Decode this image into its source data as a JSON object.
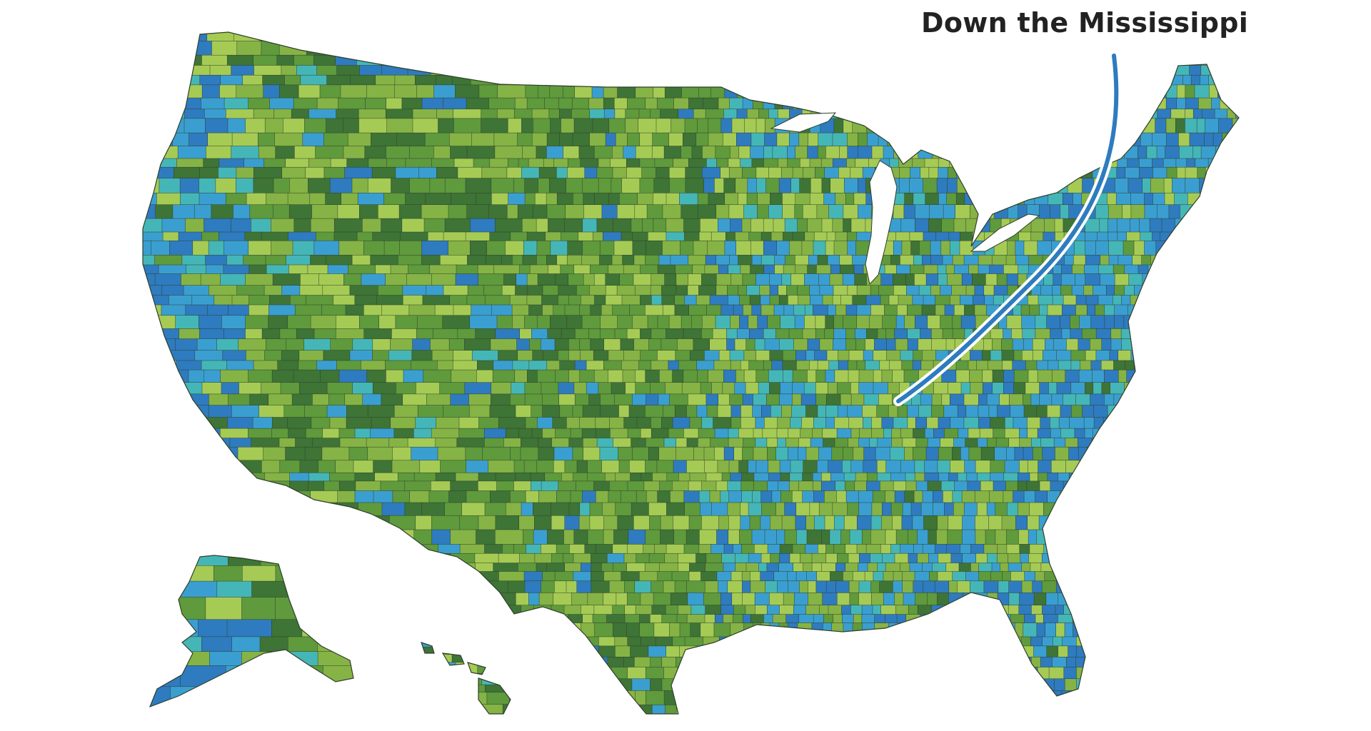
{
  "title": "Down the Mississippi",
  "palette": [
    "#2e7bbf",
    "#3a9fd0",
    "#45b6b8",
    "#a6cb55",
    "#86b345",
    "#5f9a3c",
    "#3e7436"
  ],
  "colors": {
    "water": "#2e7bbf",
    "border": "#2f3e2a",
    "annotation_line": "#2e7bbf",
    "annotation_halo": "#ffffff",
    "title": "#222222"
  }
}
